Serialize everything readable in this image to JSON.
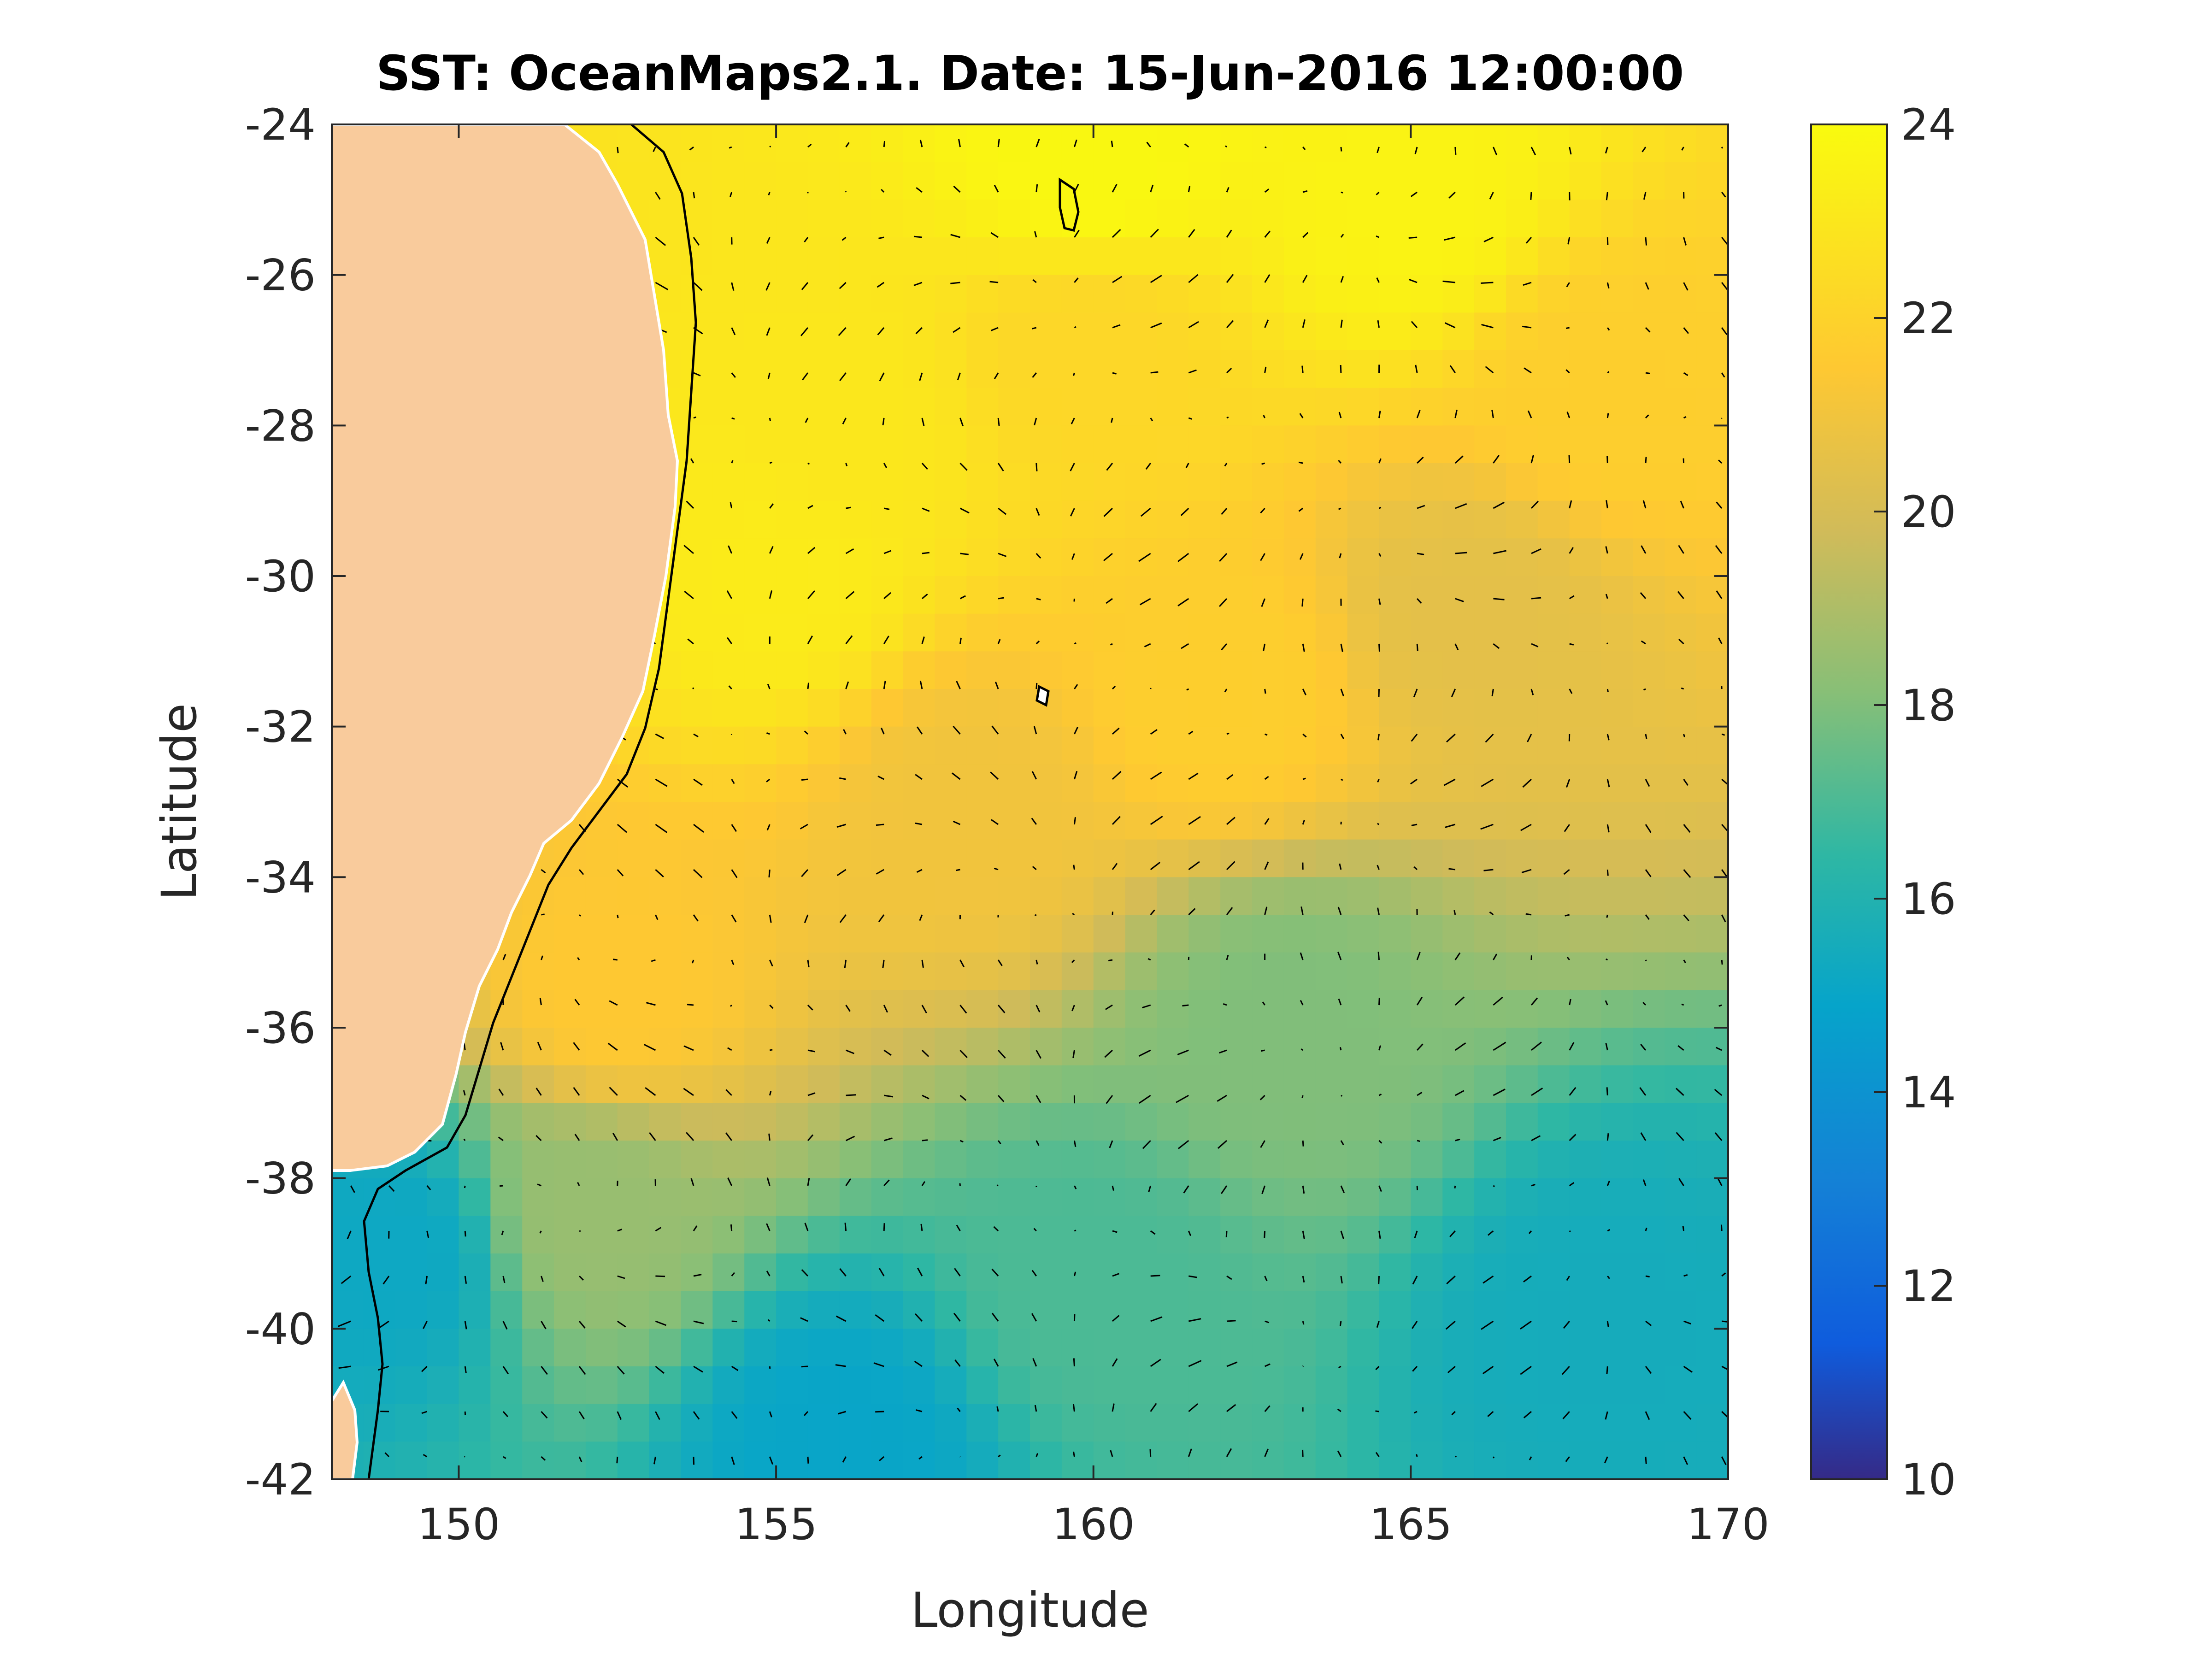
{
  "figure": {
    "title": "SST: OceanMaps2.1. Date: 15-Jun-2016 12:00:00",
    "xlabel": "Longitude",
    "ylabel": "Latitude"
  },
  "chart_data": {
    "type": "heatmap",
    "title": "SST: OceanMaps2.1. Date: 15-Jun-2016 12:00:00",
    "xlabel": "Longitude",
    "ylabel": "Latitude",
    "xlim": [
      148,
      170
    ],
    "ylim": [
      -42,
      -24
    ],
    "x_ticks": [
      150,
      155,
      160,
      165,
      170
    ],
    "y_ticks": [
      -24,
      -26,
      -28,
      -30,
      -32,
      -34,
      -36,
      -38,
      -40,
      -42
    ],
    "colorbar": {
      "range": [
        10,
        24
      ],
      "ticks": [
        10,
        12,
        14,
        16,
        18,
        20,
        22,
        24
      ],
      "colormap": "parula"
    },
    "overlay": "surface current velocity vectors (quiver)",
    "land_color": "#f9cb9c",
    "coastline_contour_color": "#000000",
    "sst_samples": [
      {
        "lon": 160,
        "lat": -24.5,
        "sst": 23.8
      },
      {
        "lon": 165,
        "lat": -25,
        "sst": 23.6
      },
      {
        "lon": 160,
        "lat": -27,
        "sst": 22.2
      },
      {
        "lon": 168,
        "lat": -27.5,
        "sst": 21.8
      },
      {
        "lon": 156,
        "lat": -28,
        "sst": 23.0
      },
      {
        "lon": 155,
        "lat": -30,
        "sst": 23.2
      },
      {
        "lon": 162,
        "lat": -31.5,
        "sst": 21.8
      },
      {
        "lon": 166,
        "lat": -30.5,
        "sst": 20.5
      },
      {
        "lon": 158,
        "lat": -33,
        "sst": 21.0
      },
      {
        "lon": 152.5,
        "lat": -35.5,
        "sst": 21.5
      },
      {
        "lon": 163,
        "lat": -36,
        "sst": 18.0
      },
      {
        "lon": 152,
        "lat": -38.5,
        "sst": 18.5
      },
      {
        "lon": 160,
        "lat": -39.5,
        "sst": 17.0
      },
      {
        "lon": 168,
        "lat": -40,
        "sst": 15.5
      },
      {
        "lon": 156,
        "lat": -41.5,
        "sst": 15.0
      },
      {
        "lon": 149,
        "lat": -39,
        "sst": 15.2
      }
    ]
  }
}
